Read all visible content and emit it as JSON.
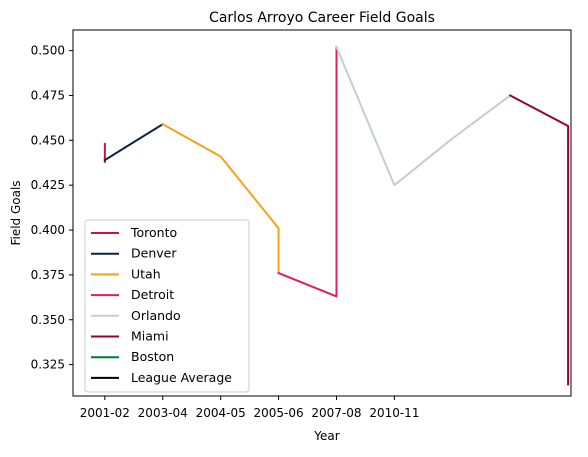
{
  "chart_data": {
    "type": "line",
    "title": "Carlos Arroyo Career Field Goals",
    "xlabel": "Year",
    "ylabel": "Field Goals",
    "x_ticks": [
      {
        "value": 0,
        "label": "2001-02"
      },
      {
        "value": 2,
        "label": "2003-04"
      },
      {
        "value": 4,
        "label": "2004-05"
      },
      {
        "value": 6,
        "label": "2005-06"
      },
      {
        "value": 8,
        "label": "2007-08"
      },
      {
        "value": 10,
        "label": "2010-11"
      }
    ],
    "xlim": [
      -1.1,
      16.1
    ],
    "ylim": [
      0.3075,
      0.5115
    ],
    "y_ticks": [
      0.325,
      0.35,
      0.375,
      0.4,
      0.425,
      0.45,
      0.475,
      0.5
    ],
    "y_tick_labels": [
      "0.325",
      "0.350",
      "0.375",
      "0.400",
      "0.425",
      "0.450",
      "0.475",
      "0.500"
    ],
    "grid": false,
    "legend_position": "lower-left",
    "series": [
      {
        "name": "Toronto",
        "color": "#ce1141",
        "points": [
          [
            0,
            0.448
          ],
          [
            0,
            0.438
          ]
        ]
      },
      {
        "name": "Denver",
        "color": "#0e2240",
        "points": [
          [
            0,
            0.439
          ],
          [
            2,
            0.459
          ]
        ]
      },
      {
        "name": "Utah",
        "color": "#f9a01b",
        "points": [
          [
            2,
            0.459
          ],
          [
            4,
            0.441
          ],
          [
            6,
            0.401
          ],
          [
            6,
            0.376
          ]
        ]
      },
      {
        "name": "Detroit",
        "color": "#e01e5a",
        "points": [
          [
            6,
            0.376
          ],
          [
            8,
            0.363
          ],
          [
            8,
            0.502
          ]
        ]
      },
      {
        "name": "Orlando",
        "color": "#c4ced4",
        "points": [
          [
            8,
            0.502
          ],
          [
            10,
            0.425
          ],
          [
            12,
            0.451
          ],
          [
            14,
            0.475
          ]
        ]
      },
      {
        "name": "Miami",
        "color": "#98002e",
        "points": [
          [
            14,
            0.475
          ],
          [
            16,
            0.458
          ],
          [
            16,
            0.314
          ]
        ]
      },
      {
        "name": "Boston",
        "color": "#007a33",
        "points": []
      },
      {
        "name": "League Average",
        "color": "#000000",
        "points": []
      }
    ]
  }
}
